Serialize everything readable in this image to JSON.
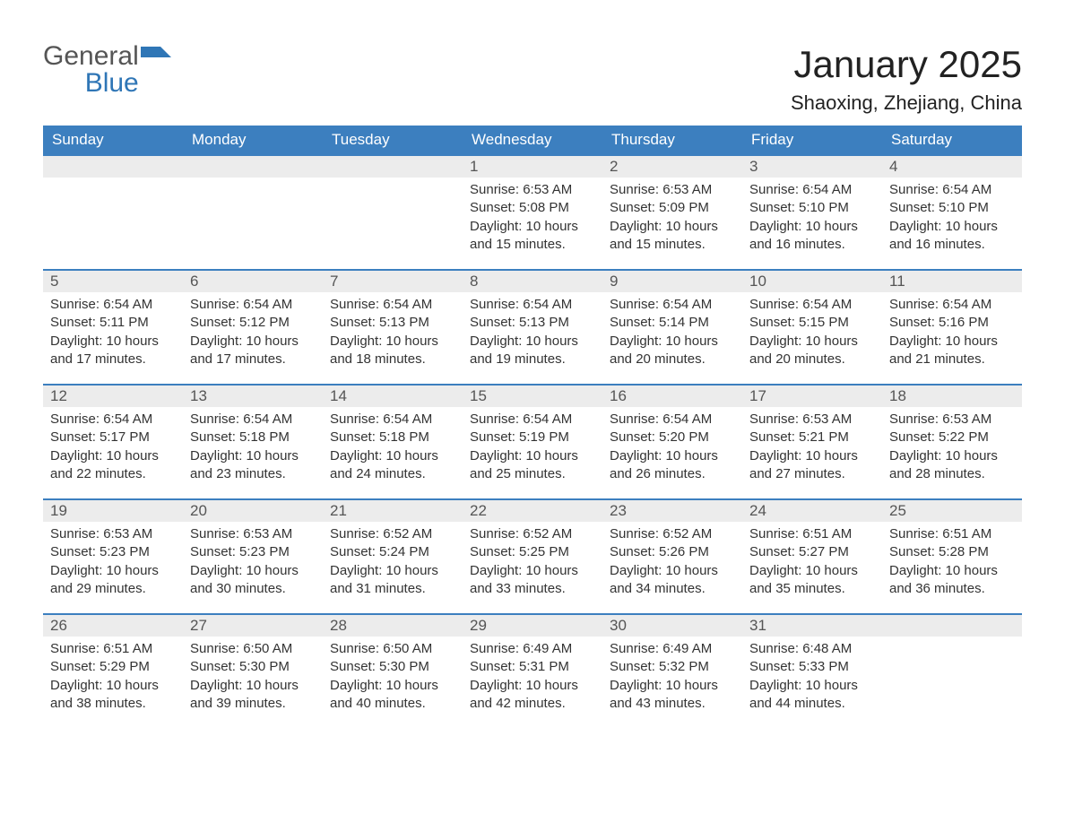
{
  "colors": {
    "header_bg": "#3c7fbf",
    "header_text": "#ffffff",
    "daynum_bg": "#ececec",
    "daynum_text": "#555555",
    "body_text": "#333333",
    "row_border": "#3c7fbf",
    "logo_general": "#555555",
    "logo_blue": "#2f76b6",
    "page_bg": "#ffffff"
  },
  "typography": {
    "title_fontsize": 42,
    "location_fontsize": 22,
    "header_fontsize": 17,
    "daynum_fontsize": 17,
    "body_fontsize": 15,
    "logo_fontsize": 30,
    "font_family": "Arial"
  },
  "logo": {
    "general": "General",
    "blue": "Blue"
  },
  "title": "January 2025",
  "location": "Shaoxing, Zhejiang, China",
  "weekdays": [
    "Sunday",
    "Monday",
    "Tuesday",
    "Wednesday",
    "Thursday",
    "Friday",
    "Saturday"
  ],
  "labels": {
    "sunrise": "Sunrise: ",
    "sunset": "Sunset: ",
    "daylight": "Daylight: "
  },
  "weeks": [
    [
      null,
      null,
      null,
      {
        "d": "1",
        "sr": "6:53 AM",
        "ss": "5:08 PM",
        "dl": "10 hours and 15 minutes."
      },
      {
        "d": "2",
        "sr": "6:53 AM",
        "ss": "5:09 PM",
        "dl": "10 hours and 15 minutes."
      },
      {
        "d": "3",
        "sr": "6:54 AM",
        "ss": "5:10 PM",
        "dl": "10 hours and 16 minutes."
      },
      {
        "d": "4",
        "sr": "6:54 AM",
        "ss": "5:10 PM",
        "dl": "10 hours and 16 minutes."
      }
    ],
    [
      {
        "d": "5",
        "sr": "6:54 AM",
        "ss": "5:11 PM",
        "dl": "10 hours and 17 minutes."
      },
      {
        "d": "6",
        "sr": "6:54 AM",
        "ss": "5:12 PM",
        "dl": "10 hours and 17 minutes."
      },
      {
        "d": "7",
        "sr": "6:54 AM",
        "ss": "5:13 PM",
        "dl": "10 hours and 18 minutes."
      },
      {
        "d": "8",
        "sr": "6:54 AM",
        "ss": "5:13 PM",
        "dl": "10 hours and 19 minutes."
      },
      {
        "d": "9",
        "sr": "6:54 AM",
        "ss": "5:14 PM",
        "dl": "10 hours and 20 minutes."
      },
      {
        "d": "10",
        "sr": "6:54 AM",
        "ss": "5:15 PM",
        "dl": "10 hours and 20 minutes."
      },
      {
        "d": "11",
        "sr": "6:54 AM",
        "ss": "5:16 PM",
        "dl": "10 hours and 21 minutes."
      }
    ],
    [
      {
        "d": "12",
        "sr": "6:54 AM",
        "ss": "5:17 PM",
        "dl": "10 hours and 22 minutes."
      },
      {
        "d": "13",
        "sr": "6:54 AM",
        "ss": "5:18 PM",
        "dl": "10 hours and 23 minutes."
      },
      {
        "d": "14",
        "sr": "6:54 AM",
        "ss": "5:18 PM",
        "dl": "10 hours and 24 minutes."
      },
      {
        "d": "15",
        "sr": "6:54 AM",
        "ss": "5:19 PM",
        "dl": "10 hours and 25 minutes."
      },
      {
        "d": "16",
        "sr": "6:54 AM",
        "ss": "5:20 PM",
        "dl": "10 hours and 26 minutes."
      },
      {
        "d": "17",
        "sr": "6:53 AM",
        "ss": "5:21 PM",
        "dl": "10 hours and 27 minutes."
      },
      {
        "d": "18",
        "sr": "6:53 AM",
        "ss": "5:22 PM",
        "dl": "10 hours and 28 minutes."
      }
    ],
    [
      {
        "d": "19",
        "sr": "6:53 AM",
        "ss": "5:23 PM",
        "dl": "10 hours and 29 minutes."
      },
      {
        "d": "20",
        "sr": "6:53 AM",
        "ss": "5:23 PM",
        "dl": "10 hours and 30 minutes."
      },
      {
        "d": "21",
        "sr": "6:52 AM",
        "ss": "5:24 PM",
        "dl": "10 hours and 31 minutes."
      },
      {
        "d": "22",
        "sr": "6:52 AM",
        "ss": "5:25 PM",
        "dl": "10 hours and 33 minutes."
      },
      {
        "d": "23",
        "sr": "6:52 AM",
        "ss": "5:26 PM",
        "dl": "10 hours and 34 minutes."
      },
      {
        "d": "24",
        "sr": "6:51 AM",
        "ss": "5:27 PM",
        "dl": "10 hours and 35 minutes."
      },
      {
        "d": "25",
        "sr": "6:51 AM",
        "ss": "5:28 PM",
        "dl": "10 hours and 36 minutes."
      }
    ],
    [
      {
        "d": "26",
        "sr": "6:51 AM",
        "ss": "5:29 PM",
        "dl": "10 hours and 38 minutes."
      },
      {
        "d": "27",
        "sr": "6:50 AM",
        "ss": "5:30 PM",
        "dl": "10 hours and 39 minutes."
      },
      {
        "d": "28",
        "sr": "6:50 AM",
        "ss": "5:30 PM",
        "dl": "10 hours and 40 minutes."
      },
      {
        "d": "29",
        "sr": "6:49 AM",
        "ss": "5:31 PM",
        "dl": "10 hours and 42 minutes."
      },
      {
        "d": "30",
        "sr": "6:49 AM",
        "ss": "5:32 PM",
        "dl": "10 hours and 43 minutes."
      },
      {
        "d": "31",
        "sr": "6:48 AM",
        "ss": "5:33 PM",
        "dl": "10 hours and 44 minutes."
      },
      null
    ]
  ]
}
